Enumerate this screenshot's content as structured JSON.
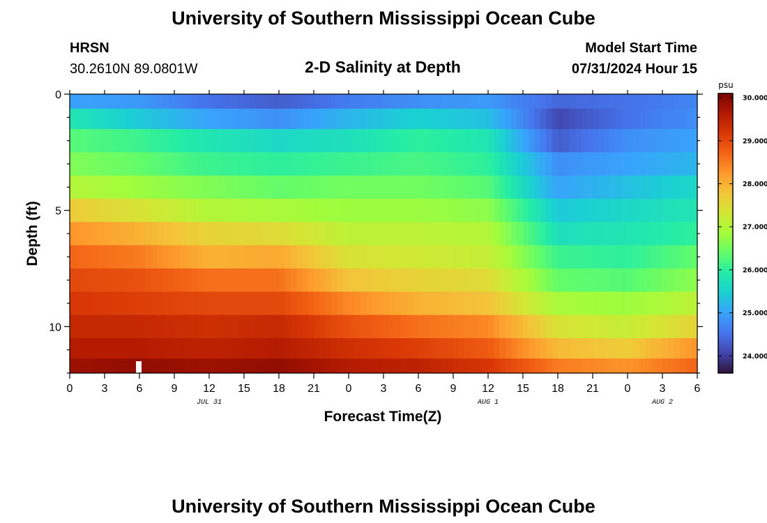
{
  "header": {
    "title": "University of Southern Mississippi Ocean Cube",
    "footer_title": "University of Southern Mississippi Ocean Cube",
    "station": "HRSN",
    "coords": "30.2610N  89.0801W",
    "subtitle": "2-D Salinity at Depth",
    "model_start_label": "Model Start Time",
    "model_start_value": "07/31/2024 Hour 15"
  },
  "chart_data": {
    "type": "heatmap",
    "title": "2-D Salinity at Depth",
    "xlabel": "Forecast Time(Z)",
    "ylabel": "Depth (ft)",
    "x_tick_labels": [
      "0",
      "3",
      "6",
      "9",
      "12",
      "15",
      "18",
      "21",
      "0",
      "3",
      "6",
      "9",
      "12",
      "15",
      "18",
      "21",
      "0",
      "3",
      "6"
    ],
    "x_range_hours": [
      0,
      54
    ],
    "date_labels": [
      {
        "label": "JUL 31",
        "hour": 12
      },
      {
        "label": "AUG 1",
        "hour": 36
      },
      {
        "label": "AUG 2",
        "hour": 51
      }
    ],
    "y_ticks": [
      0,
      5,
      10
    ],
    "y_tick_labels": [
      "0",
      "5",
      "10"
    ],
    "y_range_ft": [
      0,
      12
    ],
    "depth_levels_ft": [
      0.25,
      1.0,
      2.0,
      3.0,
      4.0,
      5.0,
      6.0,
      7.0,
      8.0,
      9.0,
      10.0,
      11.0,
      11.75
    ],
    "time_hours": [
      0,
      6,
      12,
      18,
      24,
      30,
      36,
      42,
      48,
      54
    ],
    "salinity_psu": [
      [
        25.0,
        24.9,
        24.5,
        24.3,
        24.6,
        24.8,
        24.9,
        24.4,
        24.5,
        24.7
      ],
      [
        25.8,
        25.4,
        25.0,
        24.8,
        25.2,
        25.5,
        25.3,
        24.1,
        24.5,
        24.8
      ],
      [
        26.3,
        26.1,
        25.8,
        25.6,
        25.7,
        26.0,
        25.8,
        24.3,
        24.8,
        25.0
      ],
      [
        26.6,
        26.4,
        26.1,
        26.0,
        26.1,
        26.2,
        26.0,
        24.8,
        25.0,
        25.2
      ],
      [
        27.0,
        26.8,
        26.6,
        26.4,
        26.5,
        26.5,
        26.3,
        25.0,
        25.3,
        25.6
      ],
      [
        27.7,
        27.4,
        27.0,
        26.9,
        26.8,
        26.8,
        26.7,
        25.4,
        25.6,
        25.8
      ],
      [
        28.3,
        28.0,
        27.6,
        27.5,
        27.1,
        27.1,
        27.0,
        25.7,
        25.8,
        26.0
      ],
      [
        28.7,
        28.5,
        28.0,
        28.1,
        27.4,
        27.3,
        27.2,
        26.1,
        26.0,
        26.4
      ],
      [
        29.0,
        28.9,
        28.6,
        28.6,
        27.8,
        27.6,
        27.5,
        26.4,
        26.3,
        26.7
      ],
      [
        29.2,
        29.1,
        29.0,
        29.0,
        28.4,
        28.0,
        27.8,
        26.9,
        26.8,
        27.1
      ],
      [
        29.4,
        29.4,
        29.3,
        29.4,
        28.9,
        28.6,
        28.4,
        27.4,
        27.2,
        27.6
      ],
      [
        29.6,
        29.6,
        29.5,
        29.6,
        29.3,
        29.1,
        28.8,
        27.9,
        27.7,
        28.3
      ],
      [
        29.8,
        29.9,
        29.8,
        29.9,
        29.6,
        29.5,
        29.2,
        28.5,
        28.3,
        28.7
      ]
    ],
    "colorbar": {
      "unit": "psu",
      "range": [
        23.6,
        30.1
      ],
      "tick_values": [
        24.0,
        25.0,
        26.0,
        27.0,
        28.0,
        29.0,
        30.0
      ],
      "tick_labels": [
        "24.000",
        "25.000",
        "26.000",
        "27.000",
        "28.000",
        "29.000",
        "30.000"
      ],
      "palette": [
        "#30123b",
        "#4145ab",
        "#4675ed",
        "#39a2fc",
        "#1bcfd4",
        "#24eca6",
        "#61fc6c",
        "#a4fc3b",
        "#d1e834",
        "#f3c63a",
        "#fe9b2d",
        "#f36315",
        "#d93806",
        "#b11901",
        "#7a0402"
      ]
    }
  }
}
